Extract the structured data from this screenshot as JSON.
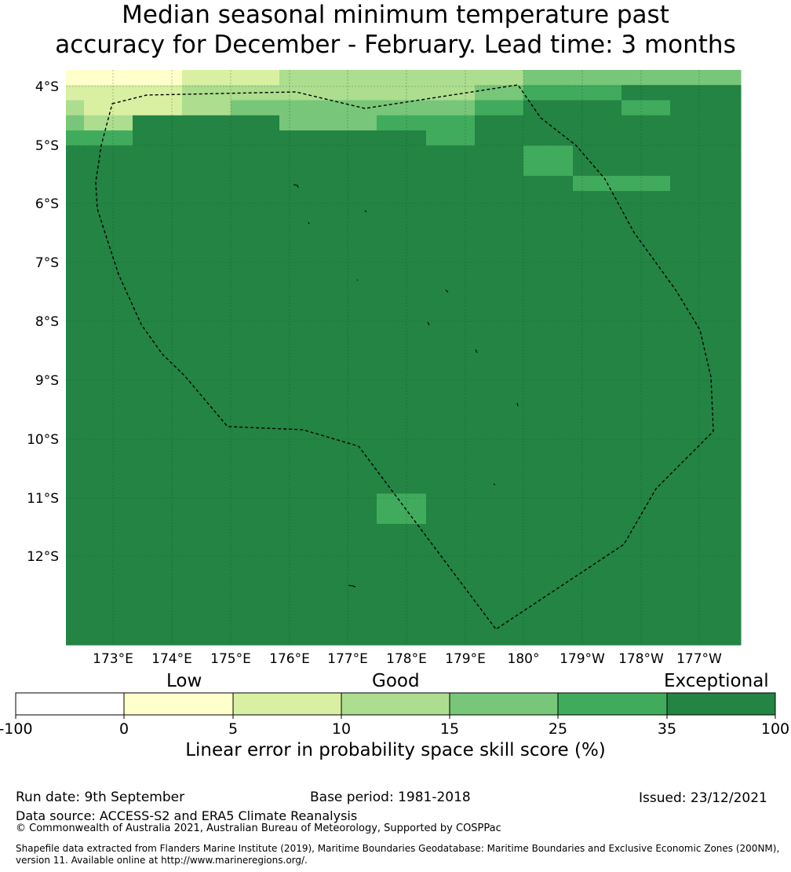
{
  "title": {
    "line1": "Median seasonal minimum temperature past",
    "line2": "accuracy for December - February. Lead time: 3 months"
  },
  "map": {
    "lat_labels": [
      "4°S",
      "5°S",
      "6°S",
      "7°S",
      "8°S",
      "9°S",
      "10°S",
      "11°S",
      "12°S"
    ],
    "lon_labels": [
      "173°E",
      "174°E",
      "175°E",
      "176°E",
      "177°E",
      "178°E",
      "179°E",
      "180°",
      "179°W",
      "178°W",
      "177°W"
    ],
    "skill_grid_bins": [
      "00011222223333",
      "11122222234455",
      "21123333345545",
      "32555334455555",
      "44555555455555",
      "55555555554555",
      "55555555554555",
      "55555555555445",
      "55555555555555",
      "55555555555555",
      "55555555555555",
      "55555555555555",
      "55555555555555",
      "55555555555555",
      "55555555555555",
      "55555555555555",
      "55555555555555",
      "55555555555555",
      "55555555555555",
      "55555555555555",
      "55555555555555",
      "55555555555555",
      "55555555555555",
      "55555555555555",
      "55555555555555",
      "55555555555555",
      "55555555555555",
      "55555555555555",
      "55555554555555",
      "55555554555555",
      "55555555555555",
      "55555555555555",
      "55555555555555",
      "55555555555555",
      "55555555555555",
      "55555555555555",
      "55555555555555",
      "55555555555555"
    ],
    "colors": {
      "no_skill": "#ffffff",
      "bin0": "#ffffcc",
      "bin1": "#d9f0a3",
      "bin2": "#addd8e",
      "bin3": "#78c679",
      "bin4": "#41ab5d",
      "bin5": "#238443",
      "boundary": "#000000",
      "gridline": "#1a4d2a"
    }
  },
  "colorbar": {
    "categories": [
      "Low",
      "Good",
      "Exceptional"
    ],
    "ticks": [
      "-100",
      "0",
      "5",
      "10",
      "15",
      "25",
      "35",
      "100"
    ],
    "colors": [
      "#ffffff",
      "#ffffcc",
      "#d9f0a3",
      "#addd8e",
      "#78c679",
      "#41ab5d",
      "#238443"
    ],
    "label": "Linear error in probability space skill score (%)"
  },
  "footer": {
    "run_date": "Run date: 9th September",
    "base_period": "Base period: 1981-2018",
    "issued": "Issued: 23/12/2021",
    "data_source": "Data source: ACCESS-S2 and ERA5 Climate Reanalysis",
    "copyright": "© Commonwealth of Australia 2021, Australian Bureau of Meteorology, Supported by COSPPac",
    "shapefile_line1": "Shapefile data extracted from Flanders Marine Institute (2019), Maritime Boundaries Geodatabase: Maritime Boundaries and Exclusive Economic Zones (200NM),",
    "shapefile_line2": "version 11. Available online at http://www.marineregions.org/."
  }
}
